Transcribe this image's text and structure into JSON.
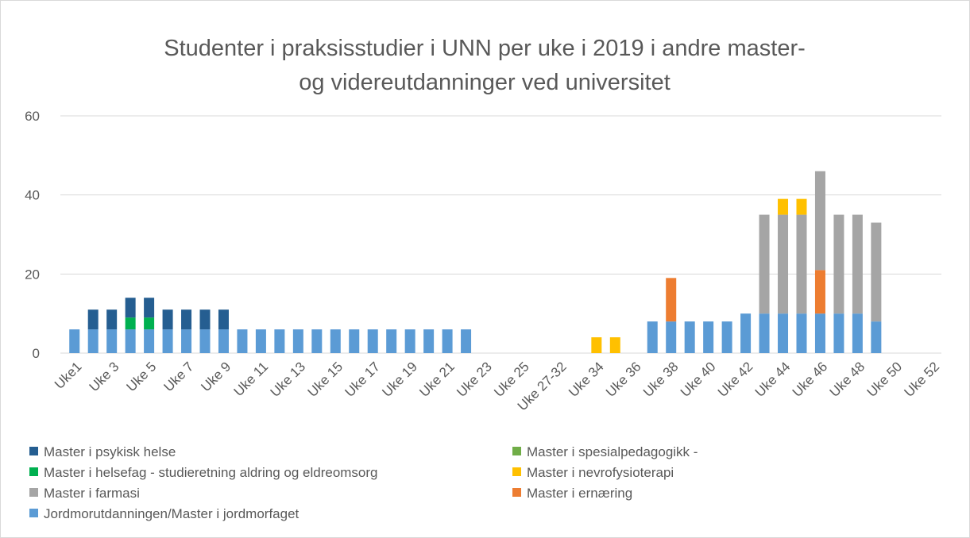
{
  "chart_data": {
    "type": "stacked_bar",
    "title": [
      "Studenter i praksisstudier i UNN per uke i 2019 i andre master-",
      "og videreutdanninger ved universitet"
    ],
    "categories": [
      "Uke1",
      null,
      "Uke 3",
      null,
      "Uke 5",
      null,
      "Uke 7",
      null,
      "Uke 9",
      null,
      "Uke 11",
      null,
      "Uke 13",
      null,
      "Uke 15",
      null,
      "Uke 17",
      null,
      "Uke 19",
      null,
      "Uke 21",
      null,
      "Uke 23",
      null,
      "Uke 25",
      null,
      "Uke 27-32",
      null,
      "Uke 34",
      null,
      "Uke 36",
      null,
      "Uke 38",
      null,
      "Uke 40",
      null,
      "Uke 42",
      null,
      "Uke 44",
      null,
      "Uke 46",
      null,
      "Uke 48",
      null,
      "Uke 50",
      null,
      "Uke 52"
    ],
    "series": [
      {
        "name": "Master i psykisk helse",
        "color": "#255e91",
        "values": [
          0,
          5,
          5,
          5,
          5,
          5,
          5,
          5,
          5,
          0,
          0,
          0,
          0,
          0,
          0,
          0,
          0,
          0,
          0,
          0,
          0,
          0,
          0,
          0,
          0,
          0,
          0,
          0,
          0,
          0,
          0,
          0,
          0,
          0,
          0,
          0,
          0,
          0,
          0,
          0,
          0,
          0,
          0,
          0,
          0,
          0,
          0
        ]
      },
      {
        "name": "Master i spesialpedagogikk -",
        "color": "#70ad47",
        "values": [
          0,
          0,
          0,
          0,
          0,
          0,
          0,
          0,
          0,
          0,
          0,
          0,
          0,
          0,
          0,
          0,
          0,
          0,
          0,
          0,
          0,
          0,
          0,
          0,
          0,
          0,
          0,
          0,
          0,
          0,
          0,
          0,
          0,
          0,
          0,
          0,
          0,
          0,
          0,
          0,
          0,
          0,
          0,
          0,
          0,
          0,
          0
        ]
      },
      {
        "name": "Master i helsefag - studieretning aldring og eldreomsorg",
        "color": "#00b050",
        "values": [
          0,
          0,
          0,
          3,
          3,
          0,
          0,
          0,
          0,
          0,
          0,
          0,
          0,
          0,
          0,
          0,
          0,
          0,
          0,
          0,
          0,
          0,
          0,
          0,
          0,
          0,
          0,
          0,
          0,
          0,
          0,
          0,
          0,
          0,
          0,
          0,
          0,
          0,
          0,
          0,
          0,
          0,
          0,
          0,
          0,
          0,
          0
        ]
      },
      {
        "name": "Master i nevrofysioterapi",
        "color": "#ffc000",
        "values": [
          0,
          0,
          0,
          0,
          0,
          0,
          0,
          0,
          0,
          0,
          0,
          0,
          0,
          0,
          0,
          0,
          0,
          0,
          0,
          0,
          0,
          0,
          0,
          0,
          0,
          0,
          0,
          0,
          4,
          4,
          0,
          0,
          0,
          0,
          0,
          0,
          0,
          0,
          4,
          4,
          0,
          0,
          0,
          0,
          0,
          0,
          0
        ]
      },
      {
        "name": "Master i farmasi",
        "color": "#a5a5a5",
        "values": [
          0,
          0,
          0,
          0,
          0,
          0,
          0,
          0,
          0,
          0,
          0,
          0,
          0,
          0,
          0,
          0,
          0,
          0,
          0,
          0,
          0,
          0,
          0,
          0,
          0,
          0,
          0,
          0,
          0,
          0,
          0,
          0,
          0,
          0,
          0,
          0,
          0,
          25,
          25,
          25,
          25,
          25,
          25,
          25,
          0,
          0,
          0
        ]
      },
      {
        "name": "Master i ernæring",
        "color": "#ed7d31",
        "values": [
          0,
          0,
          0,
          0,
          0,
          0,
          0,
          0,
          0,
          0,
          0,
          0,
          0,
          0,
          0,
          0,
          0,
          0,
          0,
          0,
          0,
          0,
          0,
          0,
          0,
          0,
          0,
          0,
          0,
          0,
          0,
          0,
          11,
          0,
          0,
          0,
          0,
          0,
          0,
          0,
          11,
          0,
          0,
          0,
          0,
          0,
          0
        ]
      },
      {
        "name": "Jordmorutdanningen/Master i jordmorfaget",
        "color": "#5b9bd5",
        "values": [
          6,
          6,
          6,
          6,
          6,
          6,
          6,
          6,
          6,
          6,
          6,
          6,
          6,
          6,
          6,
          6,
          6,
          6,
          6,
          6,
          6,
          6,
          0,
          0,
          0,
          0,
          0,
          0,
          0,
          0,
          0,
          8,
          8,
          8,
          8,
          8,
          10,
          10,
          10,
          10,
          10,
          10,
          10,
          8,
          0,
          0,
          0
        ]
      }
    ],
    "ylim": [
      0,
      60
    ],
    "yticks": [
      0,
      20,
      40,
      60
    ],
    "grid": true,
    "legend": "bottom"
  }
}
